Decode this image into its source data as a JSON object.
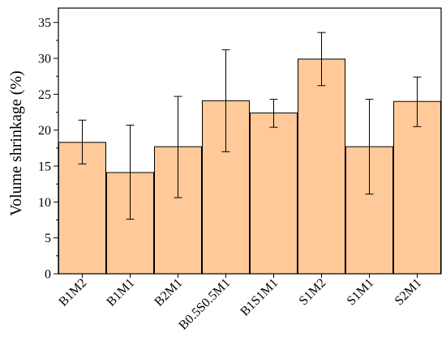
{
  "chart_data": {
    "type": "bar",
    "categories": [
      "B1M2",
      "B1M1",
      "B2M1",
      "B0.5S0.5M1",
      "B1S1M1",
      "S1M2",
      "S1M1",
      "S2M1"
    ],
    "values": [
      18.3,
      14.1,
      17.7,
      24.1,
      22.4,
      29.9,
      17.7,
      24.0
    ],
    "error_low": [
      15.3,
      7.6,
      10.6,
      17.0,
      20.4,
      26.2,
      11.1,
      20.5
    ],
    "error_high": [
      21.4,
      20.7,
      24.7,
      31.2,
      24.3,
      33.6,
      24.3,
      27.4
    ],
    "title": "",
    "xlabel": "",
    "ylabel": "Volume shrinkage (%)",
    "ylim": [
      0,
      37
    ],
    "yticks": [
      0,
      5,
      10,
      15,
      20,
      25,
      30,
      35
    ],
    "grid": false,
    "legend": "none",
    "bar_color": "#FFC999",
    "bar_edge_color": "#000000",
    "error_bar_color": "#000000"
  }
}
